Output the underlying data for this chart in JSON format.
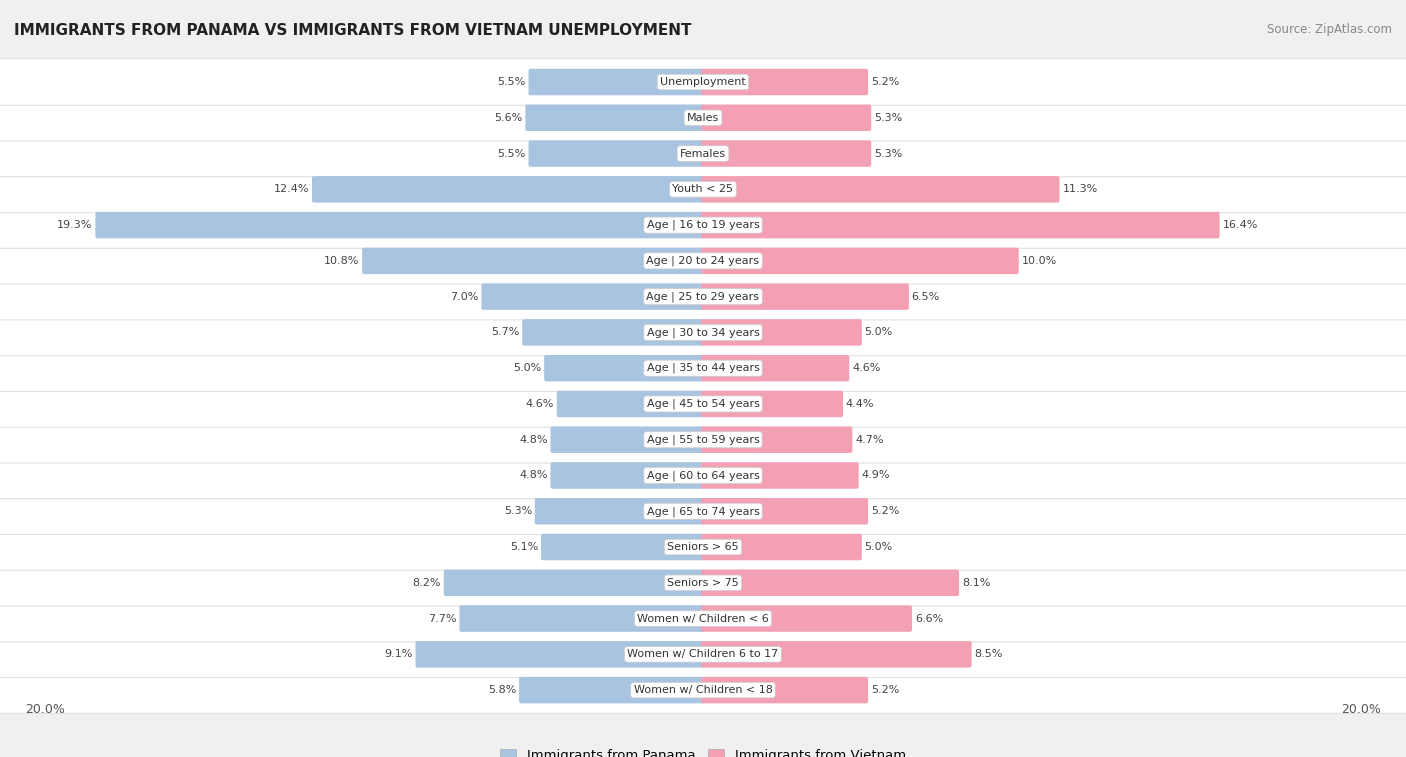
{
  "title": "IMMIGRANTS FROM PANAMA VS IMMIGRANTS FROM VIETNAM UNEMPLOYMENT",
  "source": "Source: ZipAtlas.com",
  "categories": [
    "Unemployment",
    "Males",
    "Females",
    "Youth < 25",
    "Age | 16 to 19 years",
    "Age | 20 to 24 years",
    "Age | 25 to 29 years",
    "Age | 30 to 34 years",
    "Age | 35 to 44 years",
    "Age | 45 to 54 years",
    "Age | 55 to 59 years",
    "Age | 60 to 64 years",
    "Age | 65 to 74 years",
    "Seniors > 65",
    "Seniors > 75",
    "Women w/ Children < 6",
    "Women w/ Children 6 to 17",
    "Women w/ Children < 18"
  ],
  "panama_values": [
    5.5,
    5.6,
    5.5,
    12.4,
    19.3,
    10.8,
    7.0,
    5.7,
    5.0,
    4.6,
    4.8,
    4.8,
    5.3,
    5.1,
    8.2,
    7.7,
    9.1,
    5.8
  ],
  "vietnam_values": [
    5.2,
    5.3,
    5.3,
    11.3,
    16.4,
    10.0,
    6.5,
    5.0,
    4.6,
    4.4,
    4.7,
    4.9,
    5.2,
    5.0,
    8.1,
    6.6,
    8.5,
    5.2
  ],
  "panama_color": "#a8c4e0",
  "vietnam_color": "#f4a0b4",
  "background_color": "#f0f0f0",
  "row_color_odd": "#f5f5f5",
  "row_color_even": "#ebebeb",
  "max_value": 20.0,
  "bar_height": 0.62,
  "legend_panama": "Immigrants from Panama",
  "legend_vietnam": "Immigrants from Vietnam"
}
